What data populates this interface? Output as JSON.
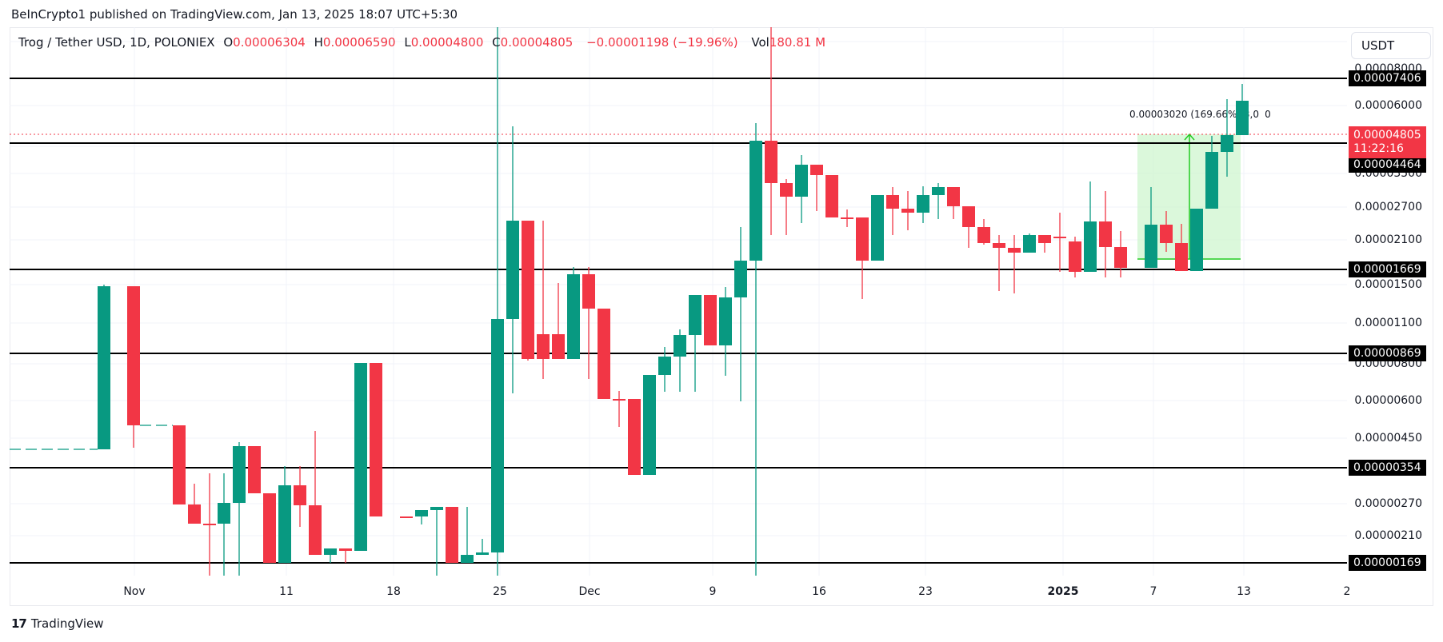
{
  "publish_line": "BeInCrypto1 published on TradingView.com, Jan 13, 2025 18:07 UTC+5:30",
  "legend": {
    "symbol": "Trog / Tether USD, 1D, POLONIEX",
    "open_label": "O",
    "open": "0.00006304",
    "high_label": "H",
    "high": "0.00006590",
    "low_label": "L",
    "low": "0.00004800",
    "close_label": "C",
    "close": "0.00004805",
    "change": "−0.00001198 (−19.96%)",
    "vol_label": "Vol",
    "vol": "180.81 M"
  },
  "currency_button": "USDT",
  "price_badge": {
    "price": "0.00004805",
    "countdown": "11:22:16",
    "color": "#f23645"
  },
  "measure_label": "0.00003020 (169.66%) 3,0   0",
  "colors": {
    "up": "#089981",
    "down": "#f23645",
    "level_line": "#000000",
    "measure_fill": "#ccf5cc",
    "measure_line": "#22cc22",
    "grid": "#f0f3fa"
  },
  "footer_logo": {
    "mark": "17",
    "text": "TradingView"
  },
  "chart_data": {
    "type": "candlestick",
    "title": "Trog / Tether USD, 1D, POLONIEX",
    "ylabel": "USDT",
    "y_scale": "log",
    "y_ticks": [
      "0.00008000",
      "0.00006000",
      "0.00003500",
      "0.00002700",
      "0.00002100",
      "0.00001500",
      "0.00001100",
      "0.00000800",
      "0.00000600",
      "0.00000450",
      "0.00000270",
      "0.00000210"
    ],
    "x_ticks": [
      "Nov",
      "11",
      "18",
      "25",
      "Dec",
      "9",
      "16",
      "23",
      "2025",
      "7",
      "13",
      "2"
    ],
    "horizontal_levels": [
      "0.00007406",
      "0.00004464",
      "0.00001669",
      "0.00000869",
      "0.00000354",
      "0.00000169"
    ],
    "last_price": "0.00004805",
    "measure": {
      "change": "0.00003020",
      "percent": "169.66%"
    },
    "grid": true
  }
}
